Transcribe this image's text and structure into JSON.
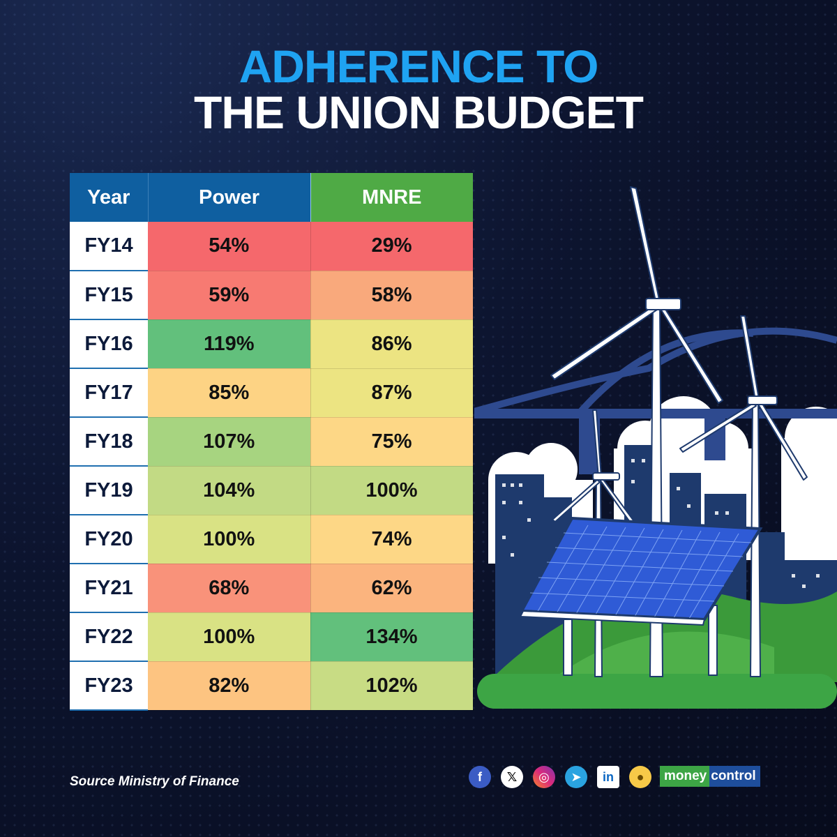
{
  "title": {
    "line1": "ADHERENCE TO",
    "line2": "THE UNION BUDGET"
  },
  "table": {
    "headers": [
      "Year",
      "Power",
      "MNRE"
    ],
    "rows": [
      {
        "year": "FY14",
        "power": "54%",
        "mnre": "29%",
        "power_color": "#f5686c",
        "mnre_color": "#f5686c"
      },
      {
        "year": "FY15",
        "power": "59%",
        "mnre": "58%",
        "power_color": "#f77a72",
        "mnre_color": "#f9a97c"
      },
      {
        "year": "FY16",
        "power": "119%",
        "mnre": "86%",
        "power_color": "#62c07c",
        "mnre_color": "#ece482"
      },
      {
        "year": "FY17",
        "power": "85%",
        "mnre": "87%",
        "power_color": "#fdd384",
        "mnre_color": "#ece482"
      },
      {
        "year": "FY18",
        "power": "107%",
        "mnre": "75%",
        "power_color": "#a7d480",
        "mnre_color": "#fdd786"
      },
      {
        "year": "FY19",
        "power": "104%",
        "mnre": "100%",
        "power_color": "#c2da84",
        "mnre_color": "#c2da84"
      },
      {
        "year": "FY20",
        "power": "100%",
        "mnre": "74%",
        "power_color": "#d9e284",
        "mnre_color": "#fdd786"
      },
      {
        "year": "FY21",
        "power": "68%",
        "mnre": "62%",
        "power_color": "#f9927a",
        "mnre_color": "#fbb47e"
      },
      {
        "year": "FY22",
        "power": "100%",
        "mnre": "134%",
        "power_color": "#d9e284",
        "mnre_color": "#62c07c"
      },
      {
        "year": "FY23",
        "power": "82%",
        "mnre": "102%",
        "power_color": "#fdc481",
        "mnre_color": "#c8dc84"
      }
    ]
  },
  "source": "Source Ministry of Finance",
  "social_icons": [
    "facebook-icon",
    "x-icon",
    "instagram-icon",
    "telegram-icon",
    "linkedin-icon",
    "koo-icon"
  ],
  "logo": {
    "part1": "money",
    "part2": "control"
  },
  "colors": {
    "title_accent": "#1fa3f2",
    "header_blue": "#0f5fa0",
    "header_green": "#4faa45"
  }
}
